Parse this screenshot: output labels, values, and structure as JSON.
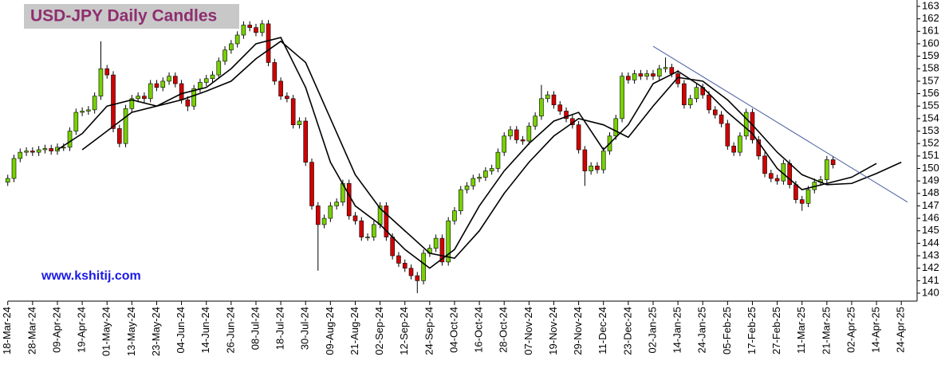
{
  "chart_data": {
    "type": "candlestick",
    "title": "USD-JPY Daily Candles",
    "annotation": "www.kshitij.com",
    "up_color": "#77d100",
    "down_color": "#d10000",
    "xlim": [
      -2.5,
      290
    ],
    "ylim": [
      139.36,
      163.51
    ],
    "yticks": [
      140,
      141,
      142,
      143,
      144,
      145,
      146,
      147,
      148,
      149,
      150,
      151,
      152,
      153,
      154,
      155,
      156,
      157,
      158,
      159,
      160,
      161,
      162,
      163
    ],
    "xticks": [
      {
        "value": 0,
        "label": "18-Mar-24"
      },
      {
        "value": 8,
        "label": "28-Mar-24"
      },
      {
        "value": 16,
        "label": "09-Apr-24"
      },
      {
        "value": 24,
        "label": "19-Apr-24"
      },
      {
        "value": 32,
        "label": "01-May-24"
      },
      {
        "value": 40,
        "label": "13-May-24"
      },
      {
        "value": 48,
        "label": "23-May-24"
      },
      {
        "value": 56,
        "label": "04-Jun-24"
      },
      {
        "value": 64,
        "label": "14-Jun-24"
      },
      {
        "value": 72,
        "label": "26-Jun-24"
      },
      {
        "value": 80,
        "label": "08-Jul-24"
      },
      {
        "value": 88,
        "label": "18-Jul-24"
      },
      {
        "value": 96,
        "label": "30-Jul-24"
      },
      {
        "value": 104,
        "label": "09-Aug-24"
      },
      {
        "value": 112,
        "label": "21-Aug-24"
      },
      {
        "value": 120,
        "label": "02-Sep-24"
      },
      {
        "value": 128,
        "label": "12-Sep-24"
      },
      {
        "value": 136,
        "label": "24-Sep-24"
      },
      {
        "value": 144,
        "label": "04-Oct-24"
      },
      {
        "value": 152,
        "label": "16-Oct-24"
      },
      {
        "value": 160,
        "label": "28-Oct-24"
      },
      {
        "value": 168,
        "label": "07-Nov-24"
      },
      {
        "value": 176,
        "label": "19-Nov-24"
      },
      {
        "value": 184,
        "label": "29-Nov-24"
      },
      {
        "value": 192,
        "label": "11-Dec-24"
      },
      {
        "value": 200,
        "label": "23-Dec-24"
      },
      {
        "value": 208,
        "label": "02-Jan-25"
      },
      {
        "value": 216,
        "label": "14-Jan-25"
      },
      {
        "value": 224,
        "label": "24-Jan-25"
      },
      {
        "value": 232,
        "label": "05-Feb-25"
      },
      {
        "value": 240,
        "label": "17-Feb-25"
      },
      {
        "value": 248,
        "label": "27-Feb-25"
      },
      {
        "value": 256,
        "label": "11-Mar-25"
      },
      {
        "value": 264,
        "label": "21-Mar-25"
      },
      {
        "value": 272,
        "label": "02-Apr-25"
      },
      {
        "value": 280,
        "label": "14-Apr-25"
      },
      {
        "value": 288,
        "label": "24-Apr-25"
      }
    ],
    "x": [
      0,
      2,
      4,
      6,
      8,
      10,
      12,
      14,
      16,
      18,
      20,
      22,
      24,
      26,
      28,
      30,
      32,
      34,
      36,
      38,
      40,
      42,
      44,
      46,
      48,
      50,
      52,
      54,
      56,
      58,
      60,
      62,
      64,
      66,
      68,
      70,
      72,
      74,
      76,
      78,
      80,
      82,
      84,
      86,
      88,
      90,
      92,
      94,
      96,
      98,
      100,
      102,
      104,
      106,
      108,
      110,
      112,
      114,
      116,
      118,
      120,
      122,
      124,
      126,
      128,
      130,
      132,
      134,
      136,
      138,
      140,
      142,
      144,
      146,
      148,
      150,
      152,
      154,
      156,
      158,
      160,
      162,
      164,
      166,
      168,
      170,
      172,
      174,
      176,
      178,
      180,
      182,
      184,
      186,
      188,
      190,
      192,
      194,
      196,
      198,
      200,
      202,
      204,
      206,
      208,
      210,
      212,
      214,
      216,
      218,
      220,
      222,
      224,
      226,
      228,
      230,
      232,
      234,
      236,
      238,
      240,
      242,
      244,
      246,
      248,
      250,
      252,
      254,
      256,
      258,
      260,
      262,
      264,
      266
    ],
    "open": [
      148.9,
      149.2,
      150.8,
      151.3,
      151.4,
      151.3,
      151.5,
      151.6,
      151.4,
      151.7,
      151.7,
      153.0,
      154.5,
      154.6,
      154.7,
      155.8,
      158.0,
      157.5,
      153.2,
      152.0,
      154.8,
      155.6,
      155.8,
      155.6,
      156.8,
      156.5,
      157.0,
      157.4,
      156.8,
      155.5,
      155.0,
      156.4,
      156.9,
      157.2,
      157.5,
      158.6,
      159.5,
      160.0,
      160.7,
      161.5,
      161.3,
      160.9,
      161.6,
      158.5,
      157.0,
      155.8,
      155.6,
      153.5,
      153.8,
      150.5,
      147.0,
      145.5,
      146.0,
      147.0,
      147.3,
      148.8,
      146.2,
      145.8,
      144.5,
      144.5,
      145.5,
      147.0,
      144.5,
      143.0,
      142.4,
      142.0,
      141.4,
      141.0,
      143.2,
      143.6,
      144.4,
      142.5,
      145.8,
      146.6,
      148.3,
      148.6,
      149.2,
      149.3,
      149.8,
      150.0,
      151.3,
      152.6,
      153.1,
      152.3,
      152.2,
      153.4,
      154.2,
      155.6,
      155.9,
      155.1,
      154.6,
      154.0,
      153.5,
      151.5,
      149.8,
      150.2,
      149.9,
      151.4,
      152.6,
      154.0,
      157.4,
      157.1,
      157.6,
      157.4,
      157.6,
      157.4,
      158.0,
      158.1,
      157.6,
      156.8,
      155.1,
      155.6,
      156.5,
      155.9,
      154.7,
      154.3,
      153.6,
      151.8,
      151.3,
      152.6,
      154.5,
      152.3,
      151.0,
      149.6,
      149.2,
      149.0,
      150.4,
      148.7,
      147.5,
      147.2,
      148.3,
      148.9,
      149.1,
      150.7
    ],
    "high": [
      149.5,
      151.1,
      151.6,
      151.7,
      151.7,
      151.8,
      151.9,
      151.9,
      152.0,
      152.0,
      153.3,
      154.8,
      154.9,
      155.0,
      156.1,
      160.2,
      158.3,
      157.8,
      153.5,
      155.1,
      155.9,
      156.1,
      156.1,
      157.1,
      157.1,
      157.3,
      157.7,
      157.7,
      157.1,
      155.8,
      156.7,
      157.2,
      157.5,
      157.8,
      158.9,
      159.8,
      160.3,
      161.0,
      161.8,
      161.8,
      161.6,
      161.9,
      161.9,
      158.8,
      157.3,
      156.1,
      155.9,
      154.1,
      154.1,
      150.8,
      147.3,
      146.3,
      147.3,
      147.6,
      149.1,
      149.1,
      146.5,
      146.1,
      144.8,
      145.8,
      147.3,
      147.3,
      144.8,
      143.3,
      142.7,
      142.3,
      141.7,
      143.5,
      143.9,
      144.7,
      144.7,
      146.1,
      146.9,
      148.6,
      148.9,
      149.5,
      149.6,
      150.1,
      150.3,
      151.6,
      152.9,
      153.4,
      153.4,
      152.6,
      153.7,
      154.5,
      156.7,
      156.2,
      156.2,
      155.4,
      154.9,
      154.3,
      153.8,
      151.8,
      150.5,
      150.5,
      151.7,
      152.9,
      154.3,
      157.7,
      157.7,
      157.9,
      157.9,
      157.9,
      157.9,
      158.3,
      158.9,
      158.4,
      157.9,
      157.1,
      155.9,
      156.8,
      156.8,
      156.2,
      155.0,
      154.6,
      153.9,
      152.1,
      152.9,
      154.8,
      154.8,
      152.6,
      151.3,
      149.9,
      149.5,
      150.7,
      150.7,
      149.0,
      147.8,
      148.6,
      149.2,
      149.4,
      151.0,
      151.0
    ],
    "low": [
      148.6,
      148.9,
      150.5,
      151.0,
      151.0,
      151.0,
      151.2,
      151.1,
      151.1,
      151.4,
      151.4,
      152.7,
      154.2,
      154.3,
      154.4,
      155.5,
      157.2,
      152.9,
      151.7,
      151.7,
      154.5,
      155.3,
      155.3,
      155.3,
      156.2,
      156.2,
      156.7,
      156.5,
      155.2,
      154.6,
      154.7,
      156.1,
      156.6,
      156.9,
      157.2,
      158.3,
      159.2,
      159.7,
      160.4,
      161.0,
      160.6,
      160.6,
      158.2,
      156.7,
      155.5,
      155.3,
      153.2,
      153.2,
      150.2,
      146.7,
      141.8,
      145.2,
      145.7,
      146.7,
      147.0,
      145.9,
      145.5,
      144.2,
      144.2,
      144.2,
      145.2,
      144.2,
      142.7,
      142.1,
      141.7,
      141.1,
      140.0,
      140.7,
      142.9,
      143.3,
      142.2,
      142.2,
      145.5,
      146.3,
      148.0,
      148.3,
      148.9,
      149.0,
      149.5,
      149.7,
      151.0,
      152.3,
      152.0,
      151.9,
      151.9,
      153.1,
      153.9,
      155.3,
      154.8,
      154.3,
      153.7,
      153.2,
      151.2,
      148.6,
      149.5,
      149.6,
      149.6,
      151.1,
      152.3,
      153.7,
      156.8,
      156.8,
      157.1,
      157.1,
      157.1,
      157.1,
      157.7,
      157.3,
      156.5,
      154.8,
      154.8,
      155.3,
      155.6,
      154.4,
      154.0,
      153.3,
      151.5,
      151.0,
      151.0,
      152.3,
      152.0,
      150.7,
      149.3,
      148.9,
      148.7,
      148.7,
      148.4,
      147.2,
      146.6,
      146.9,
      148.0,
      148.6,
      148.8,
      150.0
    ],
    "close": [
      149.2,
      150.8,
      151.3,
      151.4,
      151.3,
      151.5,
      151.6,
      151.4,
      151.7,
      151.7,
      153.0,
      154.5,
      154.6,
      154.7,
      155.8,
      158.0,
      157.5,
      153.2,
      152.0,
      154.8,
      155.6,
      155.8,
      155.6,
      156.8,
      156.5,
      157.0,
      157.4,
      156.8,
      155.5,
      155.0,
      156.4,
      156.9,
      157.2,
      157.5,
      158.6,
      159.5,
      160.0,
      160.7,
      161.5,
      161.3,
      160.9,
      161.6,
      158.5,
      157.0,
      155.8,
      155.6,
      153.5,
      153.8,
      150.5,
      147.0,
      145.5,
      146.0,
      147.0,
      147.3,
      148.8,
      146.2,
      145.8,
      144.5,
      144.5,
      145.5,
      147.0,
      144.5,
      143.0,
      142.4,
      142.0,
      141.4,
      141.0,
      143.2,
      143.6,
      144.4,
      142.5,
      145.8,
      146.6,
      148.3,
      148.6,
      149.2,
      149.3,
      149.8,
      150.0,
      151.3,
      152.6,
      153.1,
      152.3,
      152.2,
      153.4,
      154.2,
      155.6,
      155.9,
      155.1,
      154.6,
      154.0,
      153.5,
      151.5,
      149.8,
      150.2,
      149.9,
      151.4,
      152.6,
      154.0,
      157.4,
      157.1,
      157.6,
      157.4,
      157.6,
      157.4,
      158.0,
      158.1,
      157.6,
      156.8,
      155.1,
      155.6,
      156.5,
      155.9,
      154.7,
      154.3,
      153.6,
      151.8,
      151.3,
      152.6,
      154.5,
      152.3,
      151.0,
      149.6,
      149.2,
      149.0,
      150.4,
      148.7,
      147.5,
      147.2,
      148.3,
      148.9,
      149.1,
      150.7,
      150.3
    ],
    "lines": [
      {
        "color": "#000000",
        "x": [
          16,
          24,
          32,
          40,
          48,
          56,
          64,
          72,
          80,
          88,
          96,
          104,
          112,
          120,
          128,
          136,
          144,
          152,
          160,
          168,
          176,
          184,
          192,
          200,
          208,
          216,
          224,
          232,
          240,
          248,
          256,
          264,
          272,
          280
        ],
        "values": [
          151.5,
          152.8,
          155.0,
          155.5,
          155.0,
          156.0,
          156.5,
          158.0,
          160.0,
          160.5,
          156.5,
          150.5,
          147.0,
          145.5,
          143.5,
          142.0,
          143.5,
          147.0,
          149.8,
          152.0,
          153.8,
          154.5,
          151.5,
          153.5,
          156.8,
          157.8,
          156.5,
          154.5,
          152.8,
          150.0,
          148.3,
          148.8,
          149.3,
          150.4
        ]
      },
      {
        "color": "#000000",
        "x": [
          24,
          32,
          40,
          48,
          56,
          64,
          72,
          80,
          88,
          96,
          104,
          112,
          120,
          128,
          136,
          144,
          152,
          160,
          168,
          176,
          184,
          192,
          200,
          208,
          216,
          224,
          232,
          240,
          248,
          256,
          264,
          272,
          280,
          288
        ],
        "values": [
          151.5,
          153.0,
          154.5,
          155.0,
          155.5,
          156.2,
          157.0,
          158.8,
          160.2,
          158.5,
          154.0,
          149.5,
          146.8,
          145.0,
          143.2,
          142.8,
          145.0,
          148.0,
          150.5,
          152.6,
          154.0,
          153.5,
          152.5,
          155.0,
          157.3,
          157.0,
          155.5,
          153.5,
          151.3,
          149.5,
          148.7,
          148.8,
          149.6,
          150.5
        ]
      }
    ],
    "trendline": {
      "color": "#4a5fa0",
      "x": [
        208,
        290
      ],
      "values": [
        159.8,
        147.3
      ]
    }
  }
}
